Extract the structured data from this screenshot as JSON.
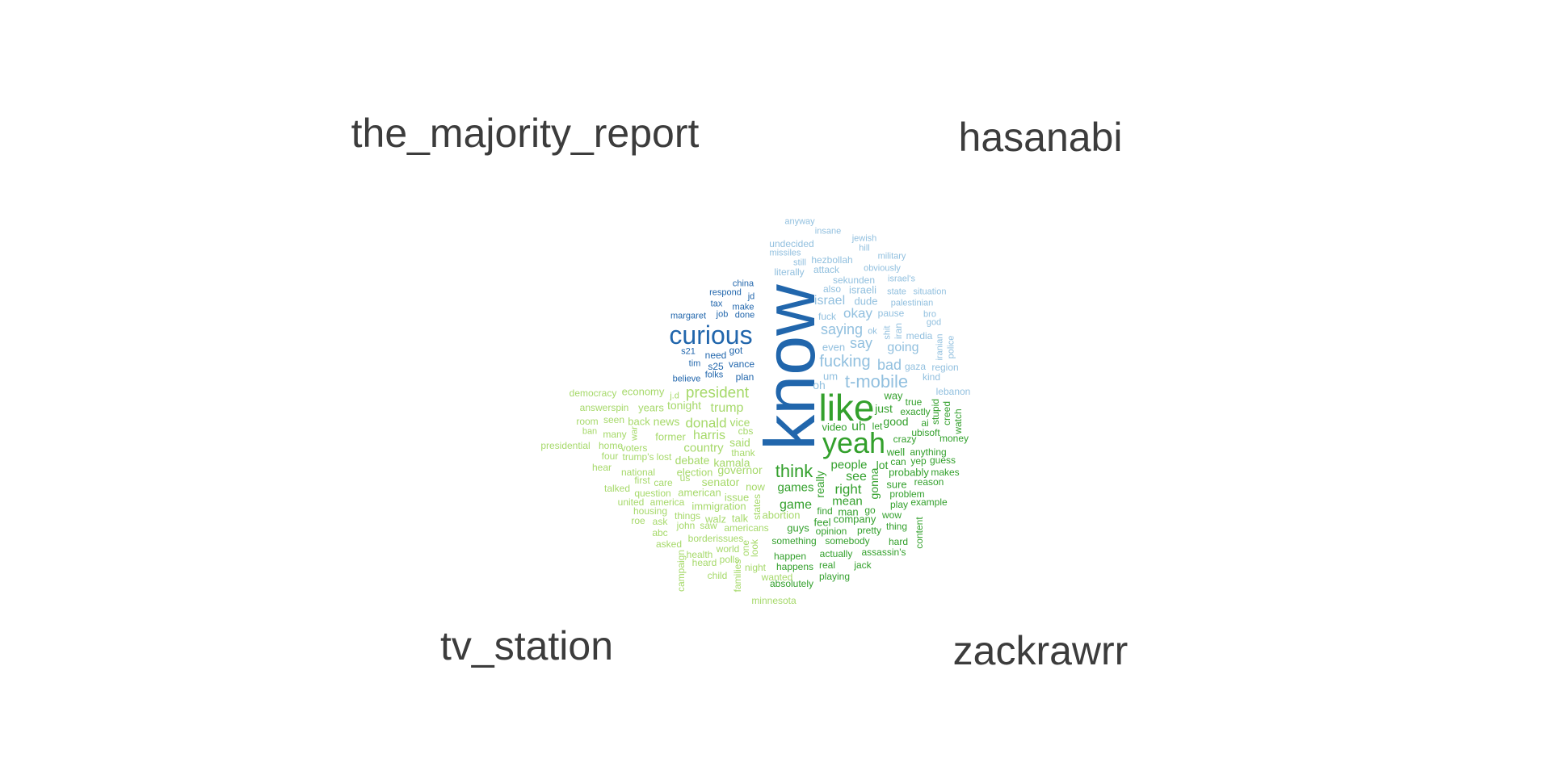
{
  "labels": {
    "top_left": "the_majority_report",
    "top_right": "hasanabi",
    "bottom_left": "tv_station",
    "bottom_right": "zackrawrr"
  },
  "colors": {
    "the_majority_report": "#2166ac",
    "hasanabi": "#92c0df",
    "tv_station": "#a6d96a",
    "zackrawrr": "#33a02c",
    "label": "#3c3c3c"
  },
  "groups": {
    "the_majority_report": [
      "know",
      "curious",
      "china",
      "respond",
      "jd",
      "tax",
      "make",
      "margaret",
      "job",
      "done",
      "s21",
      "need",
      "got",
      "tim",
      "s25",
      "vance",
      "folks",
      "plan",
      "believe"
    ],
    "hasanabi": [
      "anyway",
      "insane",
      "jewish",
      "undecided",
      "hill",
      "missiles",
      "hezbollah",
      "military",
      "still",
      "literally",
      "attack",
      "obviously",
      "sekunden",
      "israel's",
      "also",
      "israeli",
      "state",
      "situation",
      "israel",
      "dude",
      "palestinian",
      "fuck",
      "okay",
      "pause",
      "bro",
      "god",
      "saying",
      "ok",
      "shit",
      "iran",
      "media",
      "say",
      "even",
      "going",
      "iranian",
      "police",
      "fucking",
      "bad",
      "gaza",
      "region",
      "um",
      "t-mobile",
      "kind",
      "oh",
      "lebanon"
    ],
    "tv_station": [
      "democracy",
      "economy",
      "j.d",
      "president",
      "answerspin",
      "years",
      "tonight",
      "trump",
      "room",
      "seen",
      "back",
      "news",
      "donald",
      "vice",
      "ban",
      "many",
      "war",
      "former",
      "harris",
      "cbs",
      "presidential",
      "home",
      "voters",
      "country",
      "said",
      "thank",
      "four",
      "trump's",
      "lost",
      "debate",
      "kamala",
      "hear",
      "national",
      "election",
      "governor",
      "first",
      "care",
      "us",
      "senator",
      "talked",
      "question",
      "american",
      "now",
      "united",
      "america",
      "issue",
      "immigration",
      "housing",
      "things",
      "roe",
      "ask",
      "walz",
      "talk",
      "abortion",
      "john",
      "saw",
      "americans",
      "states",
      "abc",
      "borderissues",
      "asked",
      "health",
      "world",
      "campaign",
      "polls",
      "one",
      "look",
      "heard",
      "night",
      "child",
      "families",
      "wanted",
      "minnesota"
    ],
    "zackrawrr": [
      "like",
      "yeah",
      "way",
      "true",
      "just",
      "exactly",
      "stupid",
      "creed",
      "watch",
      "video",
      "uh",
      "let",
      "good",
      "ai",
      "crazy",
      "ubisoft",
      "money",
      "well",
      "anything",
      "think",
      "people",
      "lot",
      "can",
      "yep",
      "guess",
      "see",
      "probably",
      "makes",
      "games",
      "right",
      "sure",
      "reason",
      "really",
      "gonna",
      "problem",
      "game",
      "mean",
      "play",
      "example",
      "find",
      "man",
      "go",
      "wow",
      "feel",
      "company",
      "pretty",
      "thing",
      "guys",
      "opinion",
      "content",
      "something",
      "somebody",
      "hard",
      "happen",
      "actually",
      "assassin's",
      "happens",
      "real",
      "jack",
      "absolutely",
      "playing"
    ]
  }
}
